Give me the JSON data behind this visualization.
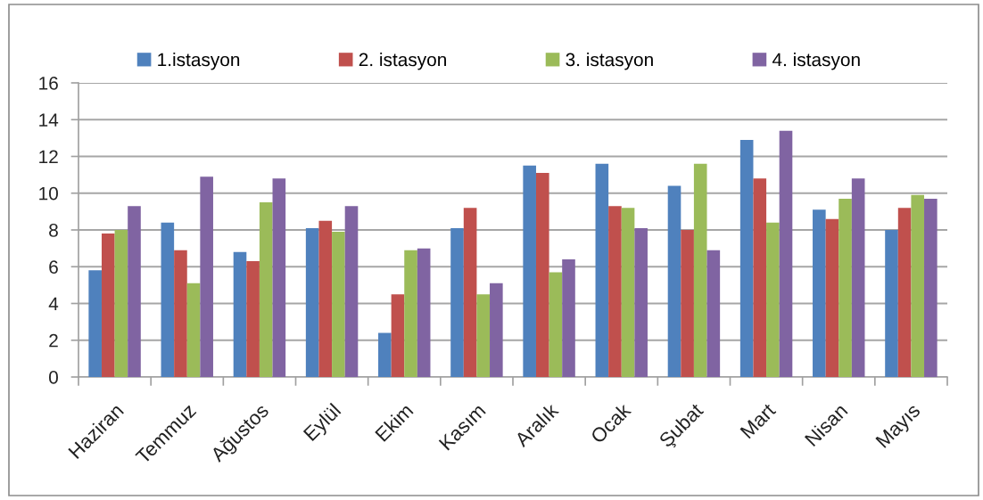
{
  "chart_data": {
    "type": "bar",
    "categories": [
      "Haziran",
      "Temmuz",
      "Ağustos",
      "Eylül",
      "Ekim",
      "Kasım",
      "Aralık",
      "Ocak",
      "Şubat",
      "Mart",
      "Nisan",
      "Mayıs"
    ],
    "series": [
      {
        "name": "1.istasyon",
        "color": "#4f81bd",
        "values": [
          5.8,
          8.4,
          6.8,
          8.1,
          2.4,
          8.1,
          11.5,
          11.6,
          10.4,
          12.9,
          9.1,
          8.0
        ]
      },
      {
        "name": "2. istasyon",
        "color": "#c0504d",
        "values": [
          7.8,
          6.9,
          6.3,
          8.5,
          4.5,
          9.2,
          11.1,
          9.3,
          8.0,
          10.8,
          8.6,
          9.2
        ]
      },
      {
        "name": "3. istasyon",
        "color": "#9bbb59",
        "values": [
          8.0,
          5.1,
          9.5,
          7.9,
          6.9,
          4.5,
          5.7,
          9.2,
          11.6,
          8.4,
          9.7,
          9.9
        ]
      },
      {
        "name": "4. istasyon",
        "color": "#8064a2",
        "values": [
          9.3,
          10.9,
          10.8,
          9.3,
          7.0,
          5.1,
          6.4,
          8.1,
          6.9,
          13.4,
          10.8,
          9.7
        ]
      }
    ],
    "ylim": [
      0,
      16
    ],
    "yticks": [
      0,
      2,
      4,
      6,
      8,
      10,
      12,
      14,
      16
    ],
    "grid": "y",
    "legend": "top"
  }
}
